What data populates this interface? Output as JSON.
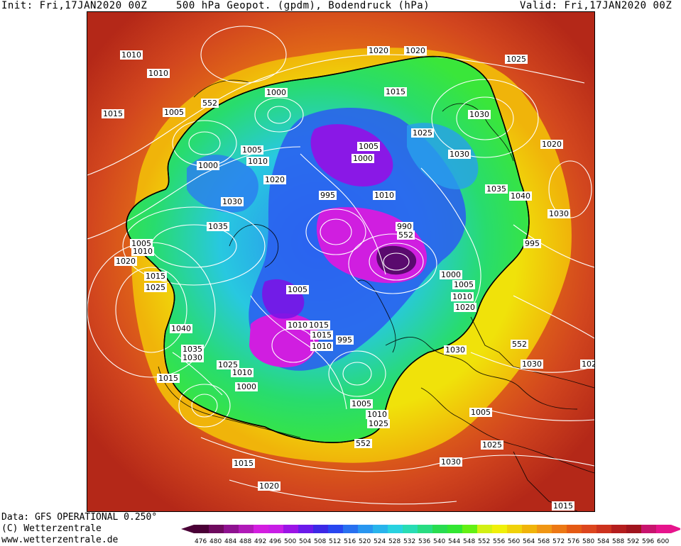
{
  "header": {
    "init": "Init: Fri,17JAN2020 00Z",
    "title": "500 hPa Geopot. (gpdm), Bodendruck (hPa)",
    "valid": "Valid: Fri,17JAN2020 00Z"
  },
  "footer": {
    "data": "Data: GFS OPERATIONAL 0.250°",
    "copyright": "(C) Wetterzentrale",
    "website": "www.wetterzentrale.de"
  },
  "legend": {
    "ticks": [
      "476",
      "480",
      "484",
      "488",
      "492",
      "496",
      "500",
      "504",
      "508",
      "512",
      "516",
      "520",
      "524",
      "528",
      "532",
      "536",
      "540",
      "544",
      "548",
      "552",
      "556",
      "560",
      "564",
      "568",
      "572",
      "576",
      "580",
      "584",
      "588",
      "592",
      "596",
      "600"
    ],
    "colors": [
      "#4a0036",
      "#6e0a5e",
      "#8e1290",
      "#b01ab8",
      "#d31ee0",
      "#c81ee6",
      "#9b14e6",
      "#6a1aea",
      "#3c28e6",
      "#2846f0",
      "#2870f0",
      "#2896f0",
      "#28b4ec",
      "#28d2e0",
      "#28dcb4",
      "#28dc82",
      "#28dc50",
      "#32e632",
      "#64f014",
      "#d2f014",
      "#f0f00a",
      "#f0d20a",
      "#f0b40a",
      "#f09614",
      "#ec7814",
      "#e45a14",
      "#dc461e",
      "#cc321e",
      "#b41e1e",
      "#a0141e",
      "#c8146e",
      "#e6148c"
    ]
  },
  "map": {
    "isobar_labels": [
      "1010",
      "1010",
      "1015",
      "1005",
      "552",
      "1000",
      "1020",
      "1020",
      "1015",
      "1025",
      "1030",
      "1025",
      "1030",
      "1020",
      "1005",
      "1000",
      "1005",
      "1000",
      "1010",
      "1020",
      "995",
      "1010",
      "1035",
      "1040",
      "1030",
      "1035",
      "990",
      "552",
      "1030",
      "1005",
      "1010",
      "1020",
      "1015",
      "1025",
      "995",
      "1000",
      "1005",
      "1010",
      "1005",
      "1020",
      "1015",
      "1010",
      "1015",
      "1010",
      "1040",
      "995",
      "1030",
      "552",
      "1035",
      "1030",
      "1030",
      "1020",
      "1025",
      "1015",
      "1010",
      "1000",
      "1005",
      "1010",
      "1025",
      "1005",
      "552",
      "1025",
      "1015",
      "1030",
      "1020",
      "1015"
    ]
  }
}
